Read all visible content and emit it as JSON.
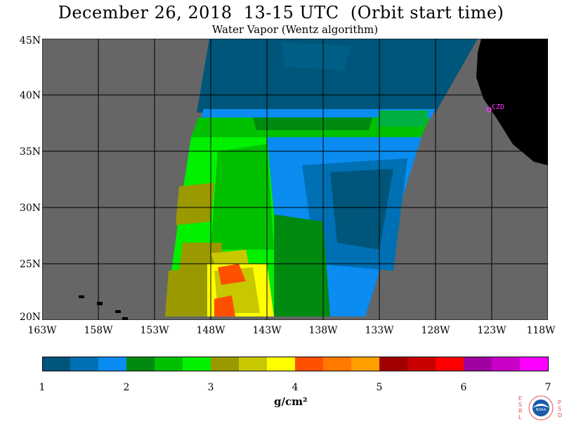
{
  "header": {
    "title": "December 26, 2018  13-15 UTC  (Orbit start time)",
    "subtitle": "Water Vapor (Wentz algorithm)"
  },
  "map": {
    "lat_labels": [
      "45N",
      "40N",
      "35N",
      "30N",
      "25N",
      "20N"
    ],
    "lon_labels": [
      "163W",
      "158W",
      "153W",
      "148W",
      "143W",
      "138W",
      "133W",
      "128W",
      "123W",
      "118W"
    ],
    "station_label": "CZD",
    "colors": {
      "no_data": "#666666",
      "land": "#000000",
      "station": "#ff33ff",
      "grid": "#000000"
    }
  },
  "colorbar": {
    "tick_labels": [
      "1",
      "2",
      "3",
      "4",
      "5",
      "6",
      "7"
    ],
    "units": "g/cm²",
    "colors": [
      "#00557a",
      "#0070b4",
      "#0a8cf0",
      "#008a10",
      "#00c000",
      "#00f000",
      "#9a9a00",
      "#c8c800",
      "#ffff00",
      "#ff5000",
      "#ff7800",
      "#ffa000",
      "#a00000",
      "#c80000",
      "#ff0000",
      "#a000a0",
      "#c800c8",
      "#ff00ff"
    ]
  },
  "logo": {
    "text": "NOAA",
    "left_letters": [
      "E",
      "S",
      "R",
      "L"
    ],
    "right_letters": [
      "P",
      "S",
      "D"
    ]
  }
}
